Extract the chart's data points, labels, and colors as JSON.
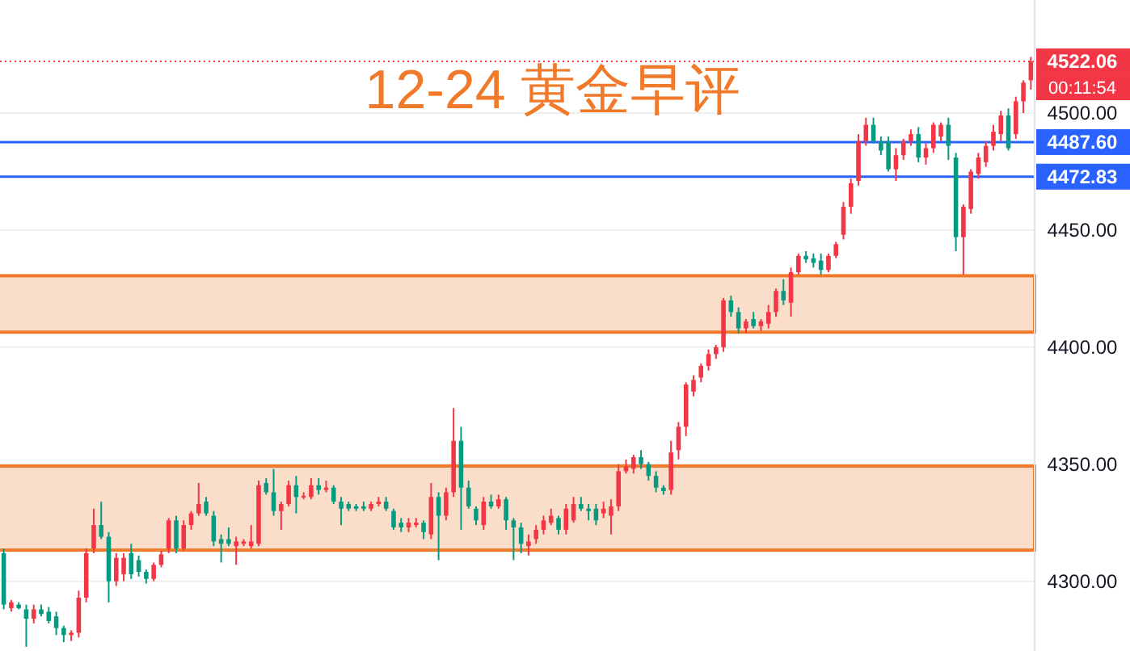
{
  "chart_data": {
    "type": "candlestick",
    "title": "12-24 黄金早评",
    "categories": [
      null,
      null,
      null,
      null,
      null,
      null,
      null,
      null,
      null,
      null,
      null,
      null,
      null,
      null,
      null,
      null,
      null,
      null,
      null,
      null,
      null,
      null,
      null,
      null,
      null,
      null,
      null,
      null,
      null,
      null,
      null,
      null,
      null,
      null,
      null,
      null,
      null,
      null,
      null,
      null,
      null,
      null,
      null,
      null,
      null,
      null,
      null,
      null,
      null,
      null,
      null,
      null,
      null,
      null,
      null,
      null,
      null,
      null,
      null,
      null,
      null,
      null,
      null,
      null,
      null,
      null,
      null,
      null,
      null,
      null,
      null,
      null,
      null,
      null,
      null,
      null,
      null,
      null,
      null,
      null,
      null,
      null,
      null,
      null,
      null,
      null,
      null,
      null,
      null,
      null,
      null,
      null,
      null,
      null,
      null,
      null,
      null,
      null,
      null,
      null,
      null,
      null,
      null,
      null,
      null,
      null,
      null,
      null,
      null,
      null,
      null,
      null,
      null,
      null,
      null,
      null,
      null,
      null,
      null,
      null,
      null,
      null,
      null,
      null,
      null,
      null,
      null,
      null,
      null,
      null,
      null,
      null,
      null,
      null,
      null,
      null,
      null,
      null
    ],
    "ohlc": [
      [
        4312,
        4314,
        4288,
        4290
      ],
      [
        4288.5,
        4292,
        4287,
        4291
      ],
      [
        4290,
        4291,
        4288,
        4288.5
      ],
      [
        4288,
        4290,
        4272,
        4284
      ],
      [
        4284,
        4290,
        4282,
        4288
      ],
      [
        4288,
        4290,
        4285,
        4286
      ],
      [
        4287,
        4289,
        4282,
        4283
      ],
      [
        4285,
        4287,
        4277,
        4280
      ],
      [
        4280,
        4281,
        4274,
        4277
      ],
      [
        4277,
        4279,
        4274.5,
        4278
      ],
      [
        4278,
        4296,
        4276,
        4293
      ],
      [
        4293,
        4314,
        4291,
        4312
      ],
      [
        4314,
        4331,
        4312,
        4324
      ],
      [
        4324,
        4334,
        4318,
        4319
      ],
      [
        4319,
        4321,
        4291,
        4300
      ],
      [
        4300,
        4312,
        4298,
        4310
      ],
      [
        4303,
        4312,
        4300,
        4310
      ],
      [
        4312,
        4316,
        4301,
        4303
      ],
      [
        4309,
        4311,
        4302,
        4304
      ],
      [
        4304,
        4305,
        4299,
        4301
      ],
      [
        4301,
        4308,
        4300,
        4307
      ],
      [
        4307,
        4313,
        4306,
        4311.5
      ],
      [
        4314,
        4327,
        4312,
        4326
      ],
      [
        4326,
        4328,
        4312,
        4314
      ],
      [
        4314,
        4326,
        4313,
        4324
      ],
      [
        4324,
        4330,
        4322,
        4329
      ],
      [
        4329,
        4342,
        4328,
        4333
      ],
      [
        4334,
        4336,
        4328,
        4329
      ],
      [
        4328,
        4330,
        4315,
        4317
      ],
      [
        4318,
        4320,
        4308,
        4316
      ],
      [
        4318,
        4323,
        4315,
        4316
      ],
      [
        4315,
        4319,
        4307,
        4317
      ],
      [
        4316,
        4318,
        4315,
        4317
      ],
      [
        4315,
        4324,
        4314,
        4317
      ],
      [
        4316,
        4343,
        4315,
        4341
      ],
      [
        4342,
        4344,
        4337,
        4338
      ],
      [
        4338,
        4348,
        4328,
        4330
      ],
      [
        4330,
        4334,
        4322,
        4333
      ],
      [
        4333,
        4343,
        4332,
        4341
      ],
      [
        4341,
        4345,
        4329,
        4336
      ],
      [
        4336,
        4338,
        4335,
        4336.5
      ],
      [
        4336,
        4344,
        4335,
        4341
      ],
      [
        4341,
        4344,
        4337,
        4339
      ],
      [
        4339,
        4343,
        4338,
        4340
      ],
      [
        4340,
        4341,
        4333,
        4334
      ],
      [
        4334,
        4336,
        4324,
        4331
      ],
      [
        4333,
        4334,
        4330,
        4331
      ],
      [
        4332,
        4333,
        4330,
        4331
      ],
      [
        4332,
        4334,
        4330,
        4331
      ],
      [
        4331,
        4334,
        4330,
        4333
      ],
      [
        4333,
        4336,
        4332,
        4334
      ],
      [
        4334,
        4336,
        4330,
        4331
      ],
      [
        4330,
        4331,
        4322,
        4323
      ],
      [
        4325,
        4327,
        4321,
        4323
      ],
      [
        4323,
        4327,
        4321,
        4325
      ],
      [
        4324,
        4327,
        4323,
        4325
      ],
      [
        4325,
        4326,
        4318,
        4321
      ],
      [
        4320,
        4342,
        4318,
        4336
      ],
      [
        4336,
        4338,
        4309,
        4328
      ],
      [
        4328,
        4340,
        4326,
        4338
      ],
      [
        4338,
        4374,
        4336,
        4360
      ],
      [
        4360,
        4366,
        4322,
        4340
      ],
      [
        4340,
        4343,
        4331,
        4332
      ],
      [
        4331,
        4332,
        4324,
        4326
      ],
      [
        4324,
        4336,
        4322,
        4334
      ],
      [
        4334,
        4337,
        4331,
        4332
      ],
      [
        4332,
        4337,
        4331,
        4335
      ],
      [
        4335,
        4336,
        4322,
        4326
      ],
      [
        4326,
        4327,
        4309,
        4323
      ],
      [
        4323,
        4325,
        4312,
        4316
      ],
      [
        4315,
        4320,
        4311,
        4317
      ],
      [
        4318,
        4324,
        4316,
        4322
      ],
      [
        4322,
        4328,
        4320,
        4326
      ],
      [
        4325,
        4331,
        4324,
        4328
      ],
      [
        4327,
        4328,
        4320,
        4322
      ],
      [
        4322,
        4333,
        4320,
        4331
      ],
      [
        4326,
        4336,
        4325,
        4333
      ],
      [
        4333,
        4336,
        4330,
        4331
      ],
      [
        4331,
        4333,
        4326,
        4330
      ],
      [
        4331,
        4333,
        4324,
        4326
      ],
      [
        4329,
        4334,
        4327,
        4331
      ],
      [
        4328,
        4335,
        4320,
        4332
      ],
      [
        4332,
        4350,
        4330,
        4347
      ],
      [
        4347,
        4352,
        4346,
        4349
      ],
      [
        4348,
        4354,
        4346,
        4353
      ],
      [
        4353,
        4356,
        4348,
        4350
      ],
      [
        4350,
        4351,
        4343,
        4345
      ],
      [
        4345,
        4347,
        4338,
        4340
      ],
      [
        4340,
        4341,
        4337,
        4338.5
      ],
      [
        4339,
        4360,
        4337,
        4355
      ],
      [
        4356,
        4368,
        4352,
        4366
      ],
      [
        4366,
        4385,
        4362,
        4384
      ],
      [
        4381,
        4388,
        4379,
        4386
      ],
      [
        4387,
        4393,
        4385,
        4392
      ],
      [
        4392,
        4399,
        4390,
        4397
      ],
      [
        4397,
        4401,
        4395,
        4400
      ],
      [
        4400,
        4421,
        4398,
        4420
      ],
      [
        4420,
        4422,
        4413,
        4415
      ],
      [
        4415,
        4417,
        4406,
        4408
      ],
      [
        4408,
        4412,
        4406,
        4411
      ],
      [
        4412,
        4415,
        4408,
        4409
      ],
      [
        4409,
        4412,
        4407,
        4411
      ],
      [
        4410,
        4418,
        4408,
        4415
      ],
      [
        4415,
        4425,
        4413,
        4424
      ],
      [
        4424,
        4429,
        4418,
        4420
      ],
      [
        4419,
        4434,
        4413,
        4432
      ],
      [
        4432,
        4440,
        4431,
        4439
      ],
      [
        4439,
        4441,
        4436,
        4437.5
      ],
      [
        4438,
        4440,
        4434,
        4436
      ],
      [
        4437,
        4440,
        4431,
        4433
      ],
      [
        4433,
        4440,
        4432,
        4439
      ],
      [
        4439,
        4445,
        4438,
        4444
      ],
      [
        4448,
        4462,
        4446,
        4460
      ],
      [
        4460,
        4472,
        4457,
        4470
      ],
      [
        4471,
        4491,
        4469,
        4488
      ],
      [
        4488,
        4498,
        4486,
        4495
      ],
      [
        4495,
        4498,
        4487,
        4488
      ],
      [
        4488,
        4490,
        4482,
        4484
      ],
      [
        4488,
        4490,
        4475,
        4476
      ],
      [
        4476,
        4485,
        4471,
        4482
      ],
      [
        4482,
        4489,
        4480,
        4488
      ],
      [
        4488,
        4493,
        4486,
        4491
      ],
      [
        4491,
        4494,
        4479,
        4481
      ],
      [
        4481,
        4487,
        4478,
        4485
      ],
      [
        4485,
        4496,
        4483,
        4495
      ],
      [
        4490,
        4496,
        4488,
        4495
      ],
      [
        4495,
        4498,
        4480,
        4486
      ],
      [
        4481,
        4483,
        4441,
        4447
      ],
      [
        4447,
        4461,
        4431,
        4460
      ],
      [
        4459,
        4476,
        4457,
        4475
      ],
      [
        4474,
        4483,
        4472,
        4481
      ],
      [
        4479,
        4488,
        4477,
        4486
      ],
      [
        4486,
        4495,
        4484,
        4492
      ],
      [
        4491,
        4501,
        4488,
        4499
      ],
      [
        4499,
        4502,
        4484,
        4485
      ],
      [
        4491,
        4507,
        4489,
        4505
      ],
      [
        4505,
        4514,
        4500,
        4513
      ],
      [
        4514,
        4524,
        4510,
        4522.06
      ]
    ],
    "colors": [
      "#089981",
      "#f23645",
      "#089981",
      "#089981",
      "#f23645",
      "#089981",
      "#089981",
      "#089981",
      "#089981",
      "#f23645",
      "#f23645",
      "#f23645",
      "#f23645",
      "#089981",
      "#089981",
      "#f23645",
      "#f23645",
      "#089981",
      "#089981",
      "#089981",
      "#f23645",
      "#f23645",
      "#f23645",
      "#089981",
      "#f23645",
      "#f23645",
      "#f23645",
      "#089981",
      "#089981",
      "#089981",
      "#089981",
      "#f23645",
      "#f23645",
      "#f23645",
      "#f23645",
      "#089981",
      "#089981",
      "#f23645",
      "#f23645",
      "#089981",
      "#f23645",
      "#f23645",
      "#089981",
      "#f23645",
      "#089981",
      "#089981",
      "#089981",
      "#089981",
      "#089981",
      "#f23645",
      "#f23645",
      "#089981",
      "#089981",
      "#089981",
      "#f23645",
      "#f23645",
      "#089981",
      "#f23645",
      "#089981",
      "#f23645",
      "#f23645",
      "#089981",
      "#089981",
      "#089981",
      "#f23645",
      "#089981",
      "#f23645",
      "#089981",
      "#089981",
      "#089981",
      "#f23645",
      "#f23645",
      "#f23645",
      "#f23645",
      "#089981",
      "#f23645",
      "#f23645",
      "#089981",
      "#089981",
      "#089981",
      "#f23645",
      "#f23645",
      "#f23645",
      "#f23645",
      "#f23645",
      "#089981",
      "#089981",
      "#089981",
      "#089981",
      "#f23645",
      "#f23645",
      "#f23645",
      "#f23645",
      "#f23645",
      "#f23645",
      "#f23645",
      "#f23645",
      "#089981",
      "#089981",
      "#f23645",
      "#089981",
      "#f23645",
      "#f23645",
      "#f23645",
      "#089981",
      "#f23645",
      "#f23645",
      "#089981",
      "#089981",
      "#089981",
      "#f23645",
      "#f23645",
      "#f23645",
      "#f23645",
      "#f23645",
      "#f23645",
      "#089981",
      "#089981",
      "#089981",
      "#f23645",
      "#f23645",
      "#f23645",
      "#089981",
      "#f23645",
      "#f23645",
      "#f23645",
      "#089981",
      "#089981",
      "#f23645",
      "#f23645",
      "#f23645",
      "#f23645",
      "#f23645",
      "#f23645",
      "#089981",
      "#f23645",
      "#f23645",
      "#f23645"
    ],
    "ylim": [
      4270.2,
      4548.3
    ],
    "yticks": [
      {
        "value": 4300,
        "label": "4300.00"
      },
      {
        "value": 4350,
        "label": "4350.00"
      },
      {
        "value": 4400,
        "label": "4400.00"
      },
      {
        "value": 4450,
        "label": "4450.00"
      },
      {
        "value": 4500,
        "label": "4500.00"
      }
    ],
    "tick_labels": "y",
    "grid": "y",
    "ref_lines": [
      {
        "axis": "y",
        "value": 4522.06,
        "label": "4522.06",
        "color": "#f23645",
        "line_style": "dotted"
      },
      {
        "axis": "y",
        "value": 4487.6,
        "label": "4487.60",
        "color": "#2962ff",
        "line_style": "solid"
      },
      {
        "axis": "y",
        "value": 4472.83,
        "label": "4472.83",
        "color": "#2962ff",
        "line_style": "solid"
      }
    ],
    "bands": [
      {
        "axis": "y",
        "from": 4313.3,
        "to": 4349.2,
        "color": "#f07a2a"
      },
      {
        "axis": "y",
        "from": 4406.4,
        "to": 4430.5,
        "color": "#f07a2a"
      }
    ],
    "annotations": [
      "00:11:54"
    ]
  }
}
